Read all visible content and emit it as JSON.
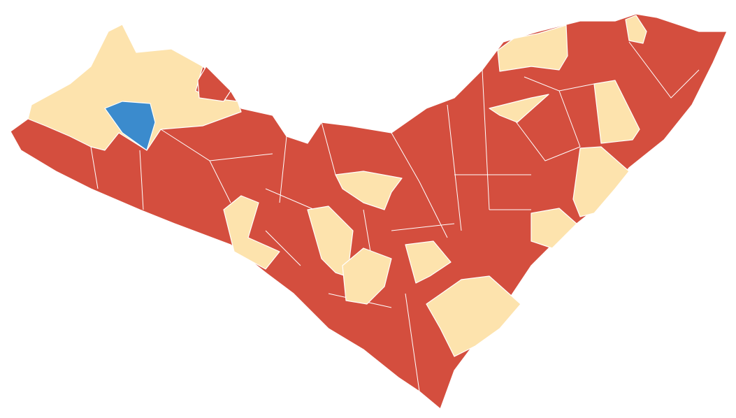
{
  "map": {
    "type": "choropleth",
    "colors": {
      "majority": "#d44e3e",
      "secondary": "#fde3ad",
      "highlight": "#3b8bcd",
      "border": "#ffffff"
    }
  }
}
